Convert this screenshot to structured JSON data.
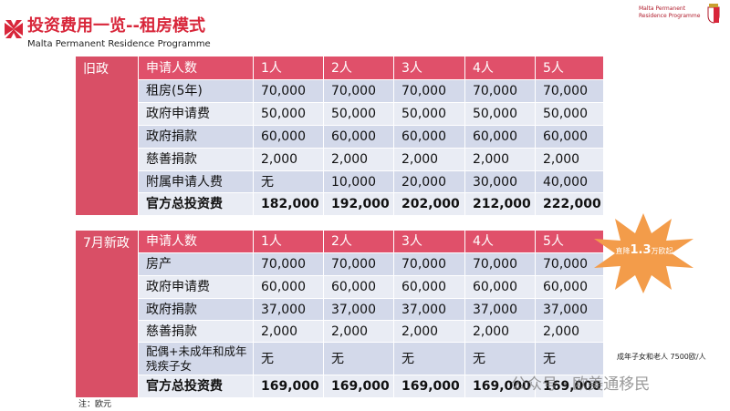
{
  "header": {
    "title": "投资费用一览--租房模式",
    "subtitle": "Malta Permanent Residence Programme",
    "logo_line1": "Malta Permanent",
    "logo_line2": "Residence Programme"
  },
  "tables": [
    {
      "label": "旧政",
      "header": [
        "申请人数",
        "1人",
        "2人",
        "3人",
        "4人",
        "5人"
      ],
      "rows": [
        [
          "租房(5年)",
          "70,000",
          "70,000",
          "70,000",
          "70,000",
          "70,000"
        ],
        [
          "政府申请费",
          "50,000",
          "50,000",
          "50,000",
          "50,000",
          "50,000"
        ],
        [
          "政府捐款",
          "60,000",
          "60,000",
          "60,000",
          "60,000",
          "60,000"
        ],
        [
          "慈善捐款",
          "2,000",
          "2,000",
          "2,000",
          "2,000",
          "2,000"
        ],
        [
          "附属申请人费",
          "无",
          "10,000",
          "20,000",
          "30,000",
          "40,000"
        ],
        [
          "官方总投资费",
          "182,000",
          "192,000",
          "202,000",
          "212,000",
          "222,000"
        ]
      ]
    },
    {
      "label": "7月新政",
      "header": [
        "申请人数",
        "1人",
        "2人",
        "3人",
        "4人",
        "5人"
      ],
      "rows": [
        [
          "房产",
          "70,000",
          "70,000",
          "70,000",
          "70,000",
          "70,000"
        ],
        [
          "政府申请费",
          "60,000",
          "60,000",
          "60,000",
          "60,000",
          "60,000"
        ],
        [
          "政府捐款",
          "37,000",
          "37,000",
          "37,000",
          "37,000",
          "37,000"
        ],
        [
          "慈善捐款",
          "2,000",
          "2,000",
          "2,000",
          "2,000",
          "2,000"
        ],
        [
          "配偶+未成年和成年残疾子女",
          "无",
          "无",
          "无",
          "无",
          "无"
        ],
        [
          "官方总投资费",
          "169,000",
          "169,000",
          "169,000",
          "169,000",
          "169,000"
        ]
      ]
    }
  ],
  "badge": {
    "prefix": "直降",
    "amount": "1.3",
    "suffix": "万欧起"
  },
  "side_note": "成年子女和老人 7500欧/人",
  "footnote": "注：欧元",
  "watermark": "公众号 · 欧美通移民"
}
